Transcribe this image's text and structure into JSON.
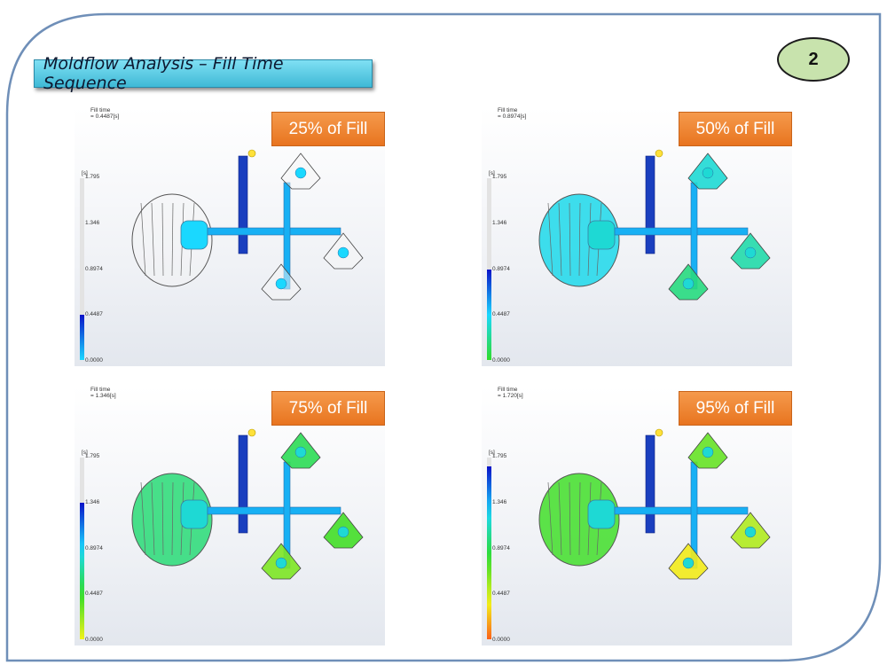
{
  "slide": {
    "title": "Moldflow Analysis – Fill Time Sequence",
    "page_number": "2"
  },
  "colorbar": {
    "unit": "[s]",
    "ticks": [
      "1.795",
      "1.346",
      "0.8974",
      "0.4487",
      "0.0000"
    ]
  },
  "panels": [
    {
      "label": "25% of Fill",
      "fill_time_label": "Fill time",
      "fill_time_value": "= 0.4487[s]",
      "fill_fraction": 0.25
    },
    {
      "label": "50% of Fill",
      "fill_time_label": "Fill time",
      "fill_time_value": "= 0.8974[s]",
      "fill_fraction": 0.5
    },
    {
      "label": "75% of Fill",
      "fill_time_label": "Fill time",
      "fill_time_value": "= 1.346[s]",
      "fill_fraction": 0.75
    },
    {
      "label": "95% of Fill",
      "fill_time_label": "Fill time",
      "fill_time_value": "= 1.720[s]",
      "fill_fraction": 0.95
    }
  ],
  "colors": {
    "slide_border": "#6f8fb8",
    "title_bg": "#4cc3e0",
    "badge_orange": "#ee7f2b",
    "page_badge": "#c8e3ad"
  }
}
